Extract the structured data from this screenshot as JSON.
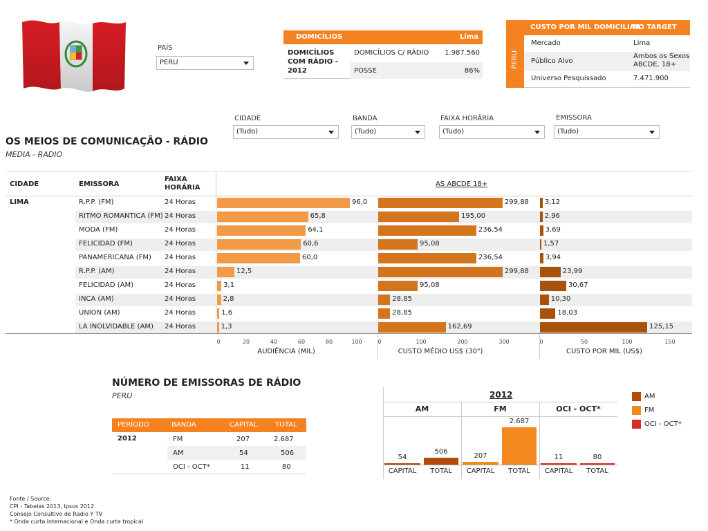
{
  "country": {
    "label": "PAÍS",
    "selected": "PERU"
  },
  "domicilios": {
    "header_left": "DOMICÍLIOS",
    "header_right": "Lima",
    "row_title": "DOMICÍLIOS COM RÁDIO - 2012",
    "rows": [
      {
        "label": "DOMICÍLIOS C/ RÁDIO",
        "value": "1.987.560"
      },
      {
        "label": "POSSE",
        "value": "86%"
      }
    ]
  },
  "cpm_box": {
    "header_left": "CUSTO POR MIL DOMICILIAR",
    "header_right": "NO TARGET",
    "side": "PERU",
    "rows": [
      {
        "label": "Mercado",
        "value": "Lima"
      },
      {
        "label": "Público Alvo",
        "value": "Ambos os Sexos ABCDE, 18+"
      },
      {
        "label": "Universo Pesquissado",
        "value": "7.471.900"
      }
    ]
  },
  "filters": [
    {
      "label": "CIDADE",
      "value": "(Tudo)"
    },
    {
      "label": "BANDA",
      "value": "(Tudo)"
    },
    {
      "label": "FAIXA HORÁRIA",
      "value": "(Tudo)"
    },
    {
      "label": "EMISSORA",
      "value": "(Tudo)"
    }
  ],
  "section1": {
    "title": "OS MEIOS DE COMUNICAÇÃO - RÁDIO",
    "subtitle": "MEDIA - RADIO"
  },
  "table_headers": {
    "cidade": "CIDADE",
    "emissora": "EMISSORA",
    "faixa": "FAIXA HORÁRIA",
    "target": "AS ABCDE 18+"
  },
  "city": "LIMA",
  "colors": {
    "audiencia": "#f29a45",
    "custo_medio": "#d4741c",
    "custo_mil": "#a9520c",
    "am": "#b24a09",
    "fm": "#f48a1f",
    "oci": "#d42d2a",
    "header": "#f58220"
  },
  "chart_data": [
    {
      "type": "bar",
      "orientation": "horizontal",
      "categories": [
        "R.P.P. (FM)",
        "RITMO ROMANTICA (FM)",
        "MODA (FM)",
        "FELICIDAD (FM)",
        "PANAMERICANA (FM)",
        "R.P.P. (AM)",
        "FELICIDAD (AM)",
        "INCA (AM)",
        "UNION (AM)",
        "LA INOLVIDABLE (AM)"
      ],
      "faixa": [
        "24 Horas",
        "24 Horas",
        "24 Horas",
        "24 Horas",
        "24 Horas",
        "24 Horas",
        "24 Horas",
        "24 Horas",
        "24 Horas",
        "24 Horas"
      ],
      "series": [
        {
          "key": "audiencia",
          "values": [
            96.0,
            65.8,
            64.1,
            60.6,
            60.0,
            12.5,
            3.1,
            2.8,
            1.6,
            1.3
          ],
          "labels": [
            "96,0",
            "65,8",
            "64,1",
            "60,6",
            "60,0",
            "12,5",
            "3,1",
            "2,8",
            "1,6",
            "1,3"
          ],
          "xlabel": "AUDIÊNCIA (MIL)",
          "xlim": [
            0,
            100
          ],
          "ticks": [
            0,
            20,
            40,
            60,
            80,
            100
          ]
        },
        {
          "key": "custo_medio",
          "values": [
            299.88,
            195.0,
            236.54,
            95.08,
            236.54,
            299.88,
            95.08,
            28.85,
            28.85,
            162.69
          ],
          "labels": [
            "299,88",
            "195,00",
            "236,54",
            "95,08",
            "236,54",
            "299,88",
            "95,08",
            "28,85",
            "28,85",
            "162,69"
          ],
          "xlabel": "CUSTO MÉDIO US$ (30\")",
          "xlim": [
            0,
            300
          ],
          "ticks": [
            0,
            100,
            200,
            300
          ]
        },
        {
          "key": "custo_mil",
          "values": [
            3.12,
            2.96,
            3.69,
            1.57,
            3.94,
            23.99,
            30.67,
            10.3,
            18.03,
            125.15
          ],
          "labels": [
            "3,12",
            "2,96",
            "3,69",
            "1,57",
            "3,94",
            "23,99",
            "30,67",
            "10,30",
            "18,03",
            "125,15"
          ],
          "xlabel": "CUSTO POR MIL (US$)",
          "xlim": [
            0,
            150
          ],
          "ticks": [
            0,
            50,
            100,
            150
          ]
        }
      ]
    },
    {
      "type": "bar",
      "title": "2012",
      "groups": [
        "AM",
        "FM",
        "OCI - OCT*"
      ],
      "categories": [
        "CAPITAL",
        "TOTAL"
      ],
      "series": [
        {
          "name": "AM",
          "values": [
            54,
            506
          ]
        },
        {
          "name": "FM",
          "values": [
            207,
            2687
          ]
        },
        {
          "name": "OCI - OCT*",
          "values": [
            11,
            80
          ]
        }
      ],
      "labels": [
        [
          "54",
          "506"
        ],
        [
          "207",
          "2.687"
        ],
        [
          "11",
          "80"
        ]
      ],
      "ylim": [
        0,
        2687
      ]
    }
  ],
  "section2": {
    "title": "NÚMERO DE EMISSORAS DE RÁDIO",
    "subtitle": "PERU"
  },
  "emissoras_table": {
    "headers": [
      "PERÍODO",
      "BANDA",
      "CAPITAL",
      "TOTAL"
    ],
    "period": "2012",
    "rows": [
      {
        "banda": "FM",
        "capital": "207",
        "total": "2.687"
      },
      {
        "banda": "AM",
        "capital": "54",
        "total": "506"
      },
      {
        "banda": "OCI - OCT*",
        "capital": "11",
        "total": "80"
      }
    ]
  },
  "legend": [
    "AM",
    "FM",
    "OCI - OCT*"
  ],
  "footer": [
    "Fonte / Source:",
    "CPI - Tabelas 2013, Ipsos 2012",
    "Consejo Consultivo de Radio Y TV",
    "* Onda curta internacional e Onda curta tropical"
  ]
}
